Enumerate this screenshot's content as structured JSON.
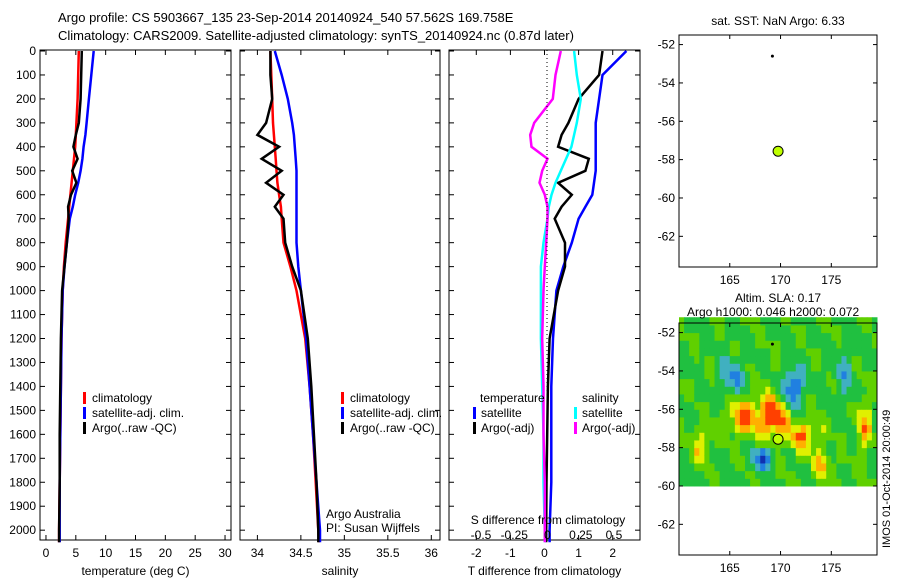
{
  "title_line1": "Argo profile: CS 5903667_135 23-Sep-2014 20140924_540 57.562S 169.758E",
  "title_line2": "Climatology: CARS2009. Satellite-adjusted climatology: synTS_20140924.nc (0.87d later)",
  "footer": "IMOS 01-Oct-2014 20:00:49",
  "colors": {
    "climatology": "#ff0000",
    "satellite": "#0000ff",
    "argo": "#000000",
    "sal_satellite": "#00ffff",
    "sal_argo": "#ff00ff",
    "marker": "#bfff00"
  },
  "chart_data": [
    {
      "type": "line",
      "id": "temperature",
      "xlabel": "temperature (deg C)",
      "xlim": [
        -1,
        31
      ],
      "xticks": [
        0,
        5,
        10,
        15,
        20,
        25,
        30
      ],
      "ylim": [
        0,
        2060
      ],
      "yticks": [
        0,
        100,
        200,
        300,
        400,
        500,
        600,
        700,
        800,
        900,
        1000,
        1100,
        1200,
        1300,
        1400,
        1500,
        1600,
        1700,
        1800,
        1900,
        2000
      ],
      "legend": [
        "climatology",
        "satellite-adj. clim.",
        "Argo(..raw -QC)"
      ],
      "depth": [
        0,
        100,
        200,
        300,
        350,
        400,
        450,
        500,
        550,
        600,
        650,
        700,
        800,
        900,
        1000,
        1200,
        1400,
        1600,
        1800,
        2000,
        2050
      ],
      "series": [
        {
          "name": "climatology",
          "values": [
            5.5,
            5.4,
            5.3,
            5.1,
            5.0,
            4.9,
            4.7,
            4.5,
            4.3,
            4.1,
            3.9,
            3.7,
            3.3,
            3.0,
            2.8,
            2.6,
            2.5,
            2.4,
            2.3,
            2.2,
            2.2
          ]
        },
        {
          "name": "satellite-adj. clim.",
          "values": [
            8.0,
            7.6,
            7.2,
            6.8,
            6.6,
            6.3,
            6.1,
            5.8,
            5.4,
            4.9,
            4.5,
            4.0,
            3.5,
            3.1,
            2.8,
            2.6,
            2.5,
            2.4,
            2.3,
            2.3,
            2.3
          ]
        },
        {
          "name": "Argo(..raw -QC)",
          "values": [
            6.0,
            5.9,
            5.8,
            5.5,
            5.0,
            4.6,
            5.3,
            4.4,
            5.1,
            4.2,
            3.7,
            3.8,
            3.5,
            3.1,
            2.7,
            2.5,
            2.4,
            2.3,
            2.3,
            2.2,
            2.2
          ]
        }
      ]
    },
    {
      "type": "line",
      "id": "salinity",
      "xlabel": "salinity",
      "xlim": [
        33.8,
        36.1
      ],
      "xticks": [
        34,
        34.5,
        35,
        35.5,
        36
      ],
      "ylim": [
        0,
        2060
      ],
      "legend": [
        "climatology",
        "satellite-adj. clim.",
        "Argo(..raw -QC)"
      ],
      "annotations": [
        "Argo Australia",
        "PI: Susan Wijffels"
      ],
      "depth": [
        0,
        100,
        200,
        300,
        350,
        400,
        450,
        500,
        550,
        600,
        650,
        700,
        800,
        900,
        1000,
        1200,
        1400,
        1600,
        1800,
        2000,
        2050
      ],
      "series": [
        {
          "name": "climatology",
          "values": [
            34.15,
            34.16,
            34.17,
            34.18,
            34.19,
            34.2,
            34.21,
            34.22,
            34.23,
            34.25,
            34.27,
            34.28,
            34.3,
            34.38,
            34.45,
            34.55,
            34.6,
            34.64,
            34.67,
            34.7,
            34.71
          ]
        },
        {
          "name": "satellite-adj. clim.",
          "values": [
            34.2,
            34.28,
            34.35,
            34.4,
            34.42,
            34.43,
            34.44,
            34.45,
            34.45,
            34.45,
            34.45,
            34.45,
            34.45,
            34.47,
            34.5,
            34.56,
            34.6,
            34.64,
            34.68,
            34.72,
            34.72
          ]
        },
        {
          "name": "Argo(..raw -QC)",
          "values": [
            34.15,
            34.15,
            34.17,
            34.1,
            34.0,
            34.25,
            34.05,
            34.28,
            34.1,
            34.3,
            34.2,
            34.3,
            34.32,
            34.4,
            34.5,
            34.58,
            34.62,
            34.65,
            34.68,
            34.7,
            34.7
          ]
        }
      ]
    },
    {
      "type": "line",
      "id": "difference",
      "xlabel": "T difference from climatology",
      "xlim": [
        -2.8,
        2.8
      ],
      "xticks": [
        -2,
        -1,
        0,
        1,
        2
      ],
      "x2label": "S difference from climatology",
      "x2ticks": [
        -0.5,
        -0.25,
        0,
        0.25,
        0.5
      ],
      "x2ticklabels": [
        "-0.5",
        "-0.25",
        "0",
        "0.25",
        "0.5"
      ],
      "ylim": [
        0,
        2060
      ],
      "legend": {
        "temperature": "temperature",
        "salinity": "salinity",
        "items": [
          "satellite",
          "Argo(-adj)",
          "satellite",
          "Argo(-adj)"
        ]
      },
      "depth": [
        0,
        100,
        200,
        300,
        350,
        400,
        450,
        500,
        550,
        600,
        650,
        700,
        800,
        900,
        1000,
        1200,
        1400,
        1600,
        1800,
        2000,
        2050
      ],
      "series": [
        {
          "name": "T satellite",
          "axis": "T",
          "values": [
            2.4,
            1.7,
            1.6,
            1.5,
            1.5,
            1.5,
            1.5,
            1.5,
            1.45,
            1.4,
            1.2,
            1.0,
            0.8,
            0.55,
            0.35,
            0.25,
            0.2,
            0.2,
            0.2,
            0.15,
            0.15
          ]
        },
        {
          "name": "T Argo(-adj)",
          "axis": "T",
          "values": [
            1.7,
            1.6,
            1.0,
            0.7,
            0.5,
            0.4,
            1.3,
            1.2,
            0.4,
            0.8,
            0.5,
            0.3,
            0.6,
            0.6,
            0.4,
            0.15,
            0.1,
            0.08,
            0.06,
            0.05,
            0.05
          ]
        },
        {
          "name": "S satellite",
          "axis": "S",
          "values": [
            0.2,
            0.22,
            0.25,
            0.22,
            0.2,
            0.18,
            0.14,
            0.1,
            0.06,
            0.03,
            0.01,
            0.0,
            -0.03,
            -0.05,
            -0.05,
            -0.05,
            -0.04,
            -0.03,
            -0.03,
            -0.02,
            -0.02
          ]
        },
        {
          "name": "S Argo(-adj)",
          "axis": "S",
          "values": [
            0.1,
            0.06,
            0.04,
            -0.1,
            -0.13,
            -0.12,
            0.0,
            -0.04,
            -0.06,
            -0.02,
            0.0,
            0.0,
            -0.01,
            -0.02,
            -0.03,
            -0.04,
            -0.03,
            -0.03,
            -0.02,
            -0.02,
            -0.02
          ]
        }
      ]
    },
    {
      "type": "scatter",
      "id": "sst_map",
      "title": "sat. SST: NaN Argo: 6.33",
      "xlim": [
        160,
        179.5
      ],
      "ylim": [
        -63.6,
        -51.5
      ],
      "xticks": [
        165,
        170,
        175
      ],
      "yticks": [
        -52,
        -54,
        -56,
        -58,
        -60,
        -62
      ],
      "points": [
        {
          "name": "previous-position",
          "lon": 169.2,
          "lat": -52.6
        },
        {
          "name": "argo-position",
          "lon": 169.758,
          "lat": -57.562
        }
      ]
    },
    {
      "type": "heatmap",
      "id": "sla_map",
      "title_line1": "Altim. SLA: 0.17",
      "title_line2": "Argo h1000: 0.046 h2000: 0.072",
      "xlim": [
        160,
        179.5
      ],
      "ylim": [
        -63.6,
        -51.5
      ],
      "data_lat_min": -60,
      "xticks": [
        165,
        170,
        175
      ],
      "yticks": [
        -52,
        -54,
        -56,
        -58,
        -60,
        -62
      ],
      "points": [
        {
          "name": "previous-position",
          "lon": 169.2,
          "lat": -52.6
        },
        {
          "name": "argo-position",
          "lon": 169.758,
          "lat": -57.562
        }
      ]
    }
  ]
}
